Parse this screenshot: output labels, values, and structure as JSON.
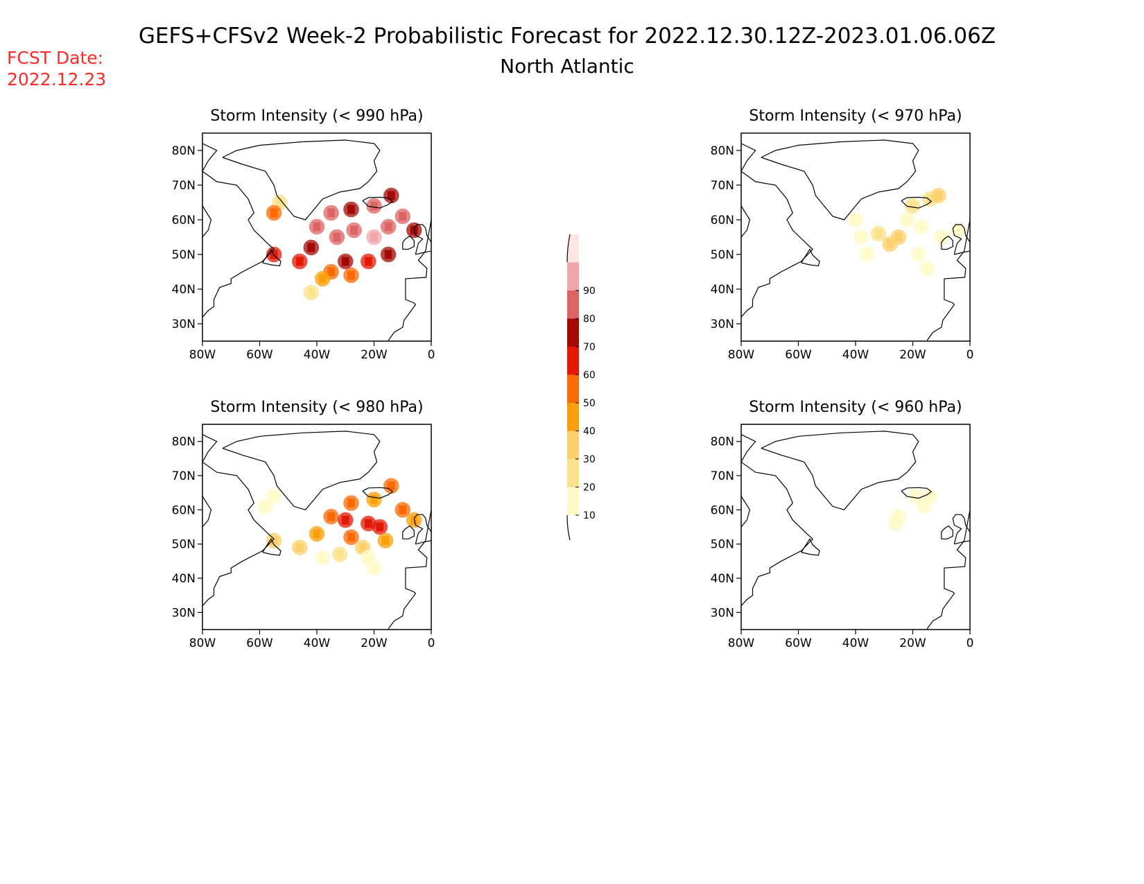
{
  "title": "GEFS+CFSv2 Week-2 Probabilistic Forecast for 2022.12.30.12Z-2023.01.06.06Z",
  "subtitle": "North Atlantic",
  "fcst_date_label": "FCST Date:",
  "fcst_date_value": "2022.12.23",
  "colorbar": {
    "labels": [
      "10",
      "20",
      "30",
      "40",
      "50",
      "60",
      "70",
      "80",
      "90"
    ],
    "colors": [
      "#fffac8",
      "#fbe28c",
      "#fbd06c",
      "#fb9f0a",
      "#fb6a05",
      "#e11a05",
      "#a30a05",
      "#dc6464",
      "#f0a5a8",
      "#fde5e6"
    ]
  },
  "chart_data": [
    {
      "type": "heatmap",
      "title": "Storm Intensity (< 990 hPa)",
      "xlabel": "",
      "ylabel": "",
      "xlim": [
        -80,
        0
      ],
      "ylim": [
        25,
        85
      ],
      "x_ticks": [
        "80W",
        "60W",
        "40W",
        "20W",
        "0"
      ],
      "y_ticks": [
        "30N",
        "40N",
        "50N",
        "60N",
        "70N",
        "80N"
      ],
      "cells": [
        {
          "lon": -53,
          "lat": 65,
          "p": 25
        },
        {
          "lon": -55,
          "lat": 62,
          "p": 55
        },
        {
          "lon": -40,
          "lat": 58,
          "p": 80
        },
        {
          "lon": -35,
          "lat": 62,
          "p": 82
        },
        {
          "lon": -28,
          "lat": 63,
          "p": 78
        },
        {
          "lon": -20,
          "lat": 64,
          "p": 80
        },
        {
          "lon": -14,
          "lat": 67,
          "p": 78
        },
        {
          "lon": -10,
          "lat": 61,
          "p": 82
        },
        {
          "lon": -6,
          "lat": 57,
          "p": 78
        },
        {
          "lon": -42,
          "lat": 52,
          "p": 75
        },
        {
          "lon": -33,
          "lat": 55,
          "p": 85
        },
        {
          "lon": -27,
          "lat": 57,
          "p": 88
        },
        {
          "lon": -20,
          "lat": 55,
          "p": 92
        },
        {
          "lon": -15,
          "lat": 58,
          "p": 88
        },
        {
          "lon": -30,
          "lat": 48,
          "p": 70
        },
        {
          "lon": -22,
          "lat": 48,
          "p": 68
        },
        {
          "lon": -15,
          "lat": 50,
          "p": 72
        },
        {
          "lon": -46,
          "lat": 48,
          "p": 65
        },
        {
          "lon": -55,
          "lat": 50,
          "p": 62
        },
        {
          "lon": -35,
          "lat": 45,
          "p": 55
        },
        {
          "lon": -38,
          "lat": 43,
          "p": 45
        },
        {
          "lon": -28,
          "lat": 44,
          "p": 50
        },
        {
          "lon": -42,
          "lat": 39,
          "p": 20
        }
      ]
    },
    {
      "type": "heatmap",
      "title": "Storm Intensity (< 970 hPa)",
      "xlabel": "",
      "ylabel": "",
      "xlim": [
        -80,
        0
      ],
      "ylim": [
        25,
        85
      ],
      "x_ticks": [
        "80W",
        "60W",
        "40W",
        "20W",
        "0"
      ],
      "y_ticks": [
        "30N",
        "40N",
        "50N",
        "60N",
        "70N",
        "80N"
      ],
      "cells": [
        {
          "lon": -28,
          "lat": 53,
          "p": 35
        },
        {
          "lon": -25,
          "lat": 55,
          "p": 32
        },
        {
          "lon": -32,
          "lat": 56,
          "p": 20
        },
        {
          "lon": -22,
          "lat": 60,
          "p": 18
        },
        {
          "lon": -20,
          "lat": 64,
          "p": 22
        },
        {
          "lon": -14,
          "lat": 66,
          "p": 22
        },
        {
          "lon": -11,
          "lat": 67,
          "p": 38
        },
        {
          "lon": -17,
          "lat": 58,
          "p": 18
        },
        {
          "lon": -36,
          "lat": 50,
          "p": 12
        },
        {
          "lon": -38,
          "lat": 55,
          "p": 12
        },
        {
          "lon": -40,
          "lat": 60,
          "p": 10
        },
        {
          "lon": -10,
          "lat": 55,
          "p": 12
        },
        {
          "lon": -4,
          "lat": 57,
          "p": 10
        },
        {
          "lon": -18,
          "lat": 50,
          "p": 12
        },
        {
          "lon": -15,
          "lat": 46,
          "p": 10
        }
      ]
    },
    {
      "type": "heatmap",
      "title": "Storm Intensity (< 980 hPa)",
      "xlabel": "",
      "ylabel": "",
      "xlim": [
        -80,
        0
      ],
      "ylim": [
        25,
        85
      ],
      "x_ticks": [
        "80W",
        "60W",
        "40W",
        "20W",
        "0"
      ],
      "y_ticks": [
        "30N",
        "40N",
        "50N",
        "60N",
        "70N",
        "80N"
      ],
      "cells": [
        {
          "lon": -55,
          "lat": 64,
          "p": 12
        },
        {
          "lon": -58,
          "lat": 61,
          "p": 12
        },
        {
          "lon": -55,
          "lat": 51,
          "p": 30
        },
        {
          "lon": -46,
          "lat": 49,
          "p": 30
        },
        {
          "lon": -40,
          "lat": 53,
          "p": 45
        },
        {
          "lon": -35,
          "lat": 58,
          "p": 55
        },
        {
          "lon": -28,
          "lat": 62,
          "p": 50
        },
        {
          "lon": -20,
          "lat": 63,
          "p": 48
        },
        {
          "lon": -14,
          "lat": 67,
          "p": 58
        },
        {
          "lon": -10,
          "lat": 60,
          "p": 50
        },
        {
          "lon": -6,
          "lat": 57,
          "p": 42
        },
        {
          "lon": -30,
          "lat": 57,
          "p": 62
        },
        {
          "lon": -22,
          "lat": 56,
          "p": 68
        },
        {
          "lon": -18,
          "lat": 55,
          "p": 60
        },
        {
          "lon": -28,
          "lat": 52,
          "p": 52
        },
        {
          "lon": -24,
          "lat": 49,
          "p": 38
        },
        {
          "lon": -16,
          "lat": 51,
          "p": 42
        },
        {
          "lon": -32,
          "lat": 47,
          "p": 22
        },
        {
          "lon": -22,
          "lat": 46,
          "p": 18
        },
        {
          "lon": -38,
          "lat": 46,
          "p": 18
        },
        {
          "lon": -20,
          "lat": 43,
          "p": 15
        }
      ]
    },
    {
      "type": "heatmap",
      "title": "Storm Intensity (< 960 hPa)",
      "xlabel": "",
      "ylabel": "",
      "xlim": [
        -80,
        0
      ],
      "ylim": [
        25,
        85
      ],
      "x_ticks": [
        "80W",
        "60W",
        "40W",
        "20W",
        "0"
      ],
      "y_ticks": [
        "30N",
        "40N",
        "50N",
        "60N",
        "70N",
        "80N"
      ],
      "cells": [
        {
          "lon": -19,
          "lat": 64,
          "p": 14
        },
        {
          "lon": -14,
          "lat": 64,
          "p": 12
        },
        {
          "lon": -16,
          "lat": 61,
          "p": 12
        },
        {
          "lon": -25,
          "lat": 58,
          "p": 12
        },
        {
          "lon": -26,
          "lat": 56,
          "p": 12
        }
      ]
    }
  ]
}
